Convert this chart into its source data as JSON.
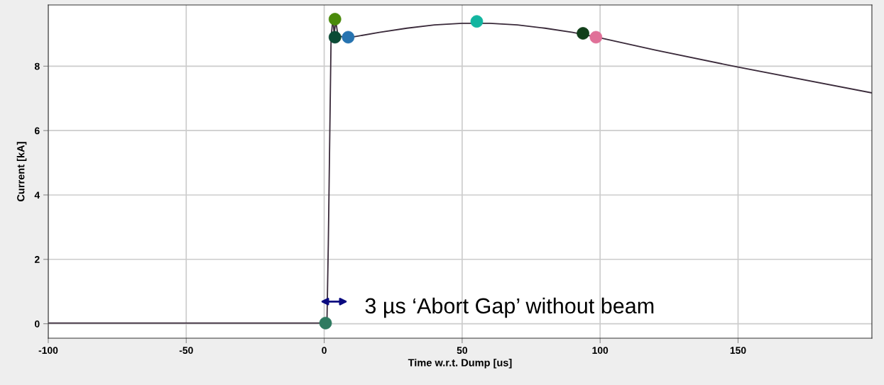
{
  "chart_data": {
    "type": "line",
    "xlabel": "Time w.r.t. Dump [us]",
    "ylabel": "Current [kA]",
    "xlim": [
      -100,
      198.5
    ],
    "ylim": [
      -0.45,
      9.9
    ],
    "xticks": [
      -100,
      -50,
      0,
      50,
      100,
      150
    ],
    "yticks": [
      0,
      2,
      4,
      6,
      8
    ],
    "grid": true,
    "legend": false,
    "marker": "none",
    "line_style": "solid",
    "series": [
      {
        "color": "#3a2a3a",
        "x": [
          -100,
          -50,
          0,
          1,
          1.5,
          2.5,
          3.2,
          3.6,
          4.2,
          5,
          7,
          10,
          20,
          30,
          40,
          50,
          60,
          70,
          80,
          90,
          100,
          120,
          150,
          198.5
        ],
        "values": [
          0.02,
          0.02,
          0.02,
          0.02,
          2.5,
          8.9,
          9.5,
          9.0,
          9.4,
          8.95,
          8.9,
          8.9,
          9.05,
          9.18,
          9.28,
          9.33,
          9.33,
          9.28,
          9.18,
          9.05,
          8.88,
          8.5,
          7.97,
          7.17
        ]
      },
      {
        "type": "scatter",
        "marker": "circle",
        "x": [
          3.9,
          3.9,
          8.7,
          55.3,
          93.8,
          98.5,
          0.5
        ],
        "values": [
          9.46,
          8.9,
          8.9,
          9.39,
          9.02,
          8.9,
          0.02
        ],
        "colors": [
          "#4a8a0a",
          "#0b4a35",
          "#2673b0",
          "#12b5a0",
          "#113f1a",
          "#e07098",
          "#2e7a60"
        ]
      }
    ],
    "annotations": [
      "3 µs ‘Abort Gap’ without beam"
    ]
  }
}
